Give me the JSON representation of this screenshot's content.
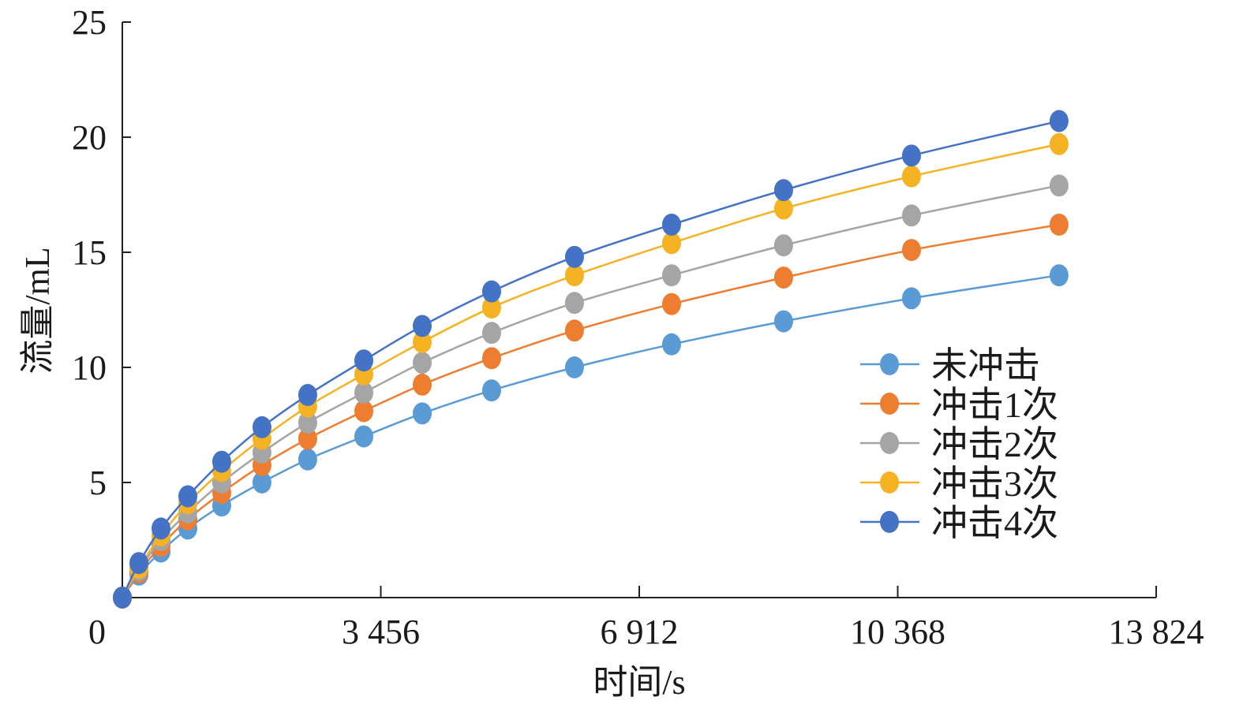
{
  "chart_data": {
    "type": "line",
    "xlabel": "时间/s",
    "ylabel": "流量/mL",
    "xlim": [
      0,
      13824
    ],
    "ylim": [
      0,
      25
    ],
    "x_ticks": [
      0,
      3456,
      6912,
      10368,
      13824
    ],
    "x_tick_labels": [
      "0",
      "3 456",
      "6 912",
      "10 368",
      "13 824"
    ],
    "y_ticks": [
      5,
      10,
      15,
      20,
      25
    ],
    "y_tick_labels": [
      "5",
      "10",
      "15",
      "20",
      "25"
    ],
    "grid": false,
    "legend_position": "right",
    "x": [
      0,
      222,
      517,
      876,
      1329,
      1867,
      2479,
      3229,
      4010,
      4938,
      6046,
      7344,
      8842,
      10552,
      12525
    ],
    "series": [
      {
        "name": "未冲击",
        "color": "#5b9bd5",
        "values": [
          0,
          1,
          2,
          3,
          4,
          5,
          6,
          7,
          8,
          9,
          10,
          11,
          12,
          13,
          14
        ]
      },
      {
        "name": "冲击1次",
        "color": "#ed7d31",
        "values": [
          0,
          1.1,
          2.25,
          3.4,
          4.55,
          5.75,
          6.9,
          8.1,
          9.25,
          10.4,
          11.6,
          12.75,
          13.9,
          15.1,
          16.2
        ]
      },
      {
        "name": "冲击2次",
        "color": "#a5a5a5",
        "values": [
          0,
          1.2,
          2.5,
          3.7,
          5.0,
          6.3,
          7.6,
          8.9,
          10.2,
          11.5,
          12.8,
          14.0,
          15.3,
          16.6,
          17.9
        ]
      },
      {
        "name": "冲击3次",
        "color": "#f5b324",
        "values": [
          0,
          1.3,
          2.7,
          4.1,
          5.5,
          6.9,
          8.3,
          9.7,
          11.1,
          12.6,
          14.0,
          15.4,
          16.9,
          18.3,
          19.7
        ]
      },
      {
        "name": "冲击4次",
        "color": "#4472c4",
        "values": [
          0,
          1.5,
          3.0,
          4.4,
          5.9,
          7.4,
          8.8,
          10.3,
          11.8,
          13.3,
          14.8,
          16.2,
          17.7,
          19.2,
          20.7
        ]
      }
    ]
  }
}
